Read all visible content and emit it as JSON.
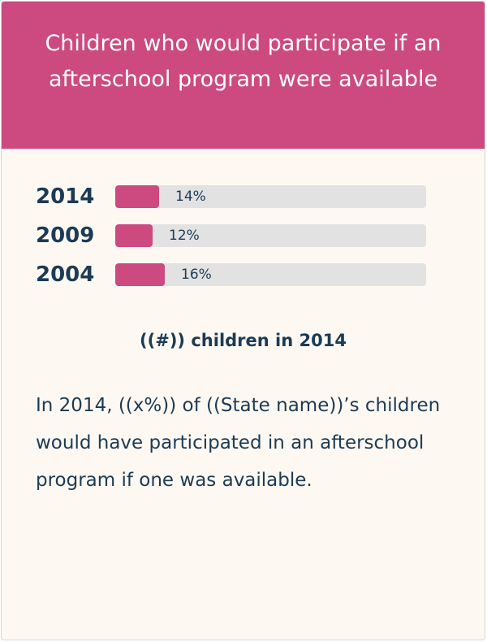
{
  "header": {
    "title": "Children who would participate if an afterschool program were available"
  },
  "summary": {
    "count_text": "((#)) children in 2014",
    "description": "In 2014, ((x%)) of ((State name))’s children would have participated in an afterschool program if one was available."
  },
  "colors": {
    "header_bg": "#cc4a80",
    "bar_fill": "#cc4a80",
    "bar_track": "#e2e2e2",
    "text": "#1c3b55",
    "card_bg": "#fdf9f2"
  },
  "chart_data": {
    "type": "bar",
    "orientation": "horizontal",
    "categories": [
      "2014",
      "2009",
      "2004"
    ],
    "values": [
      14,
      12,
      16
    ],
    "value_labels": [
      "14%",
      "12%",
      "16%"
    ],
    "xlim": [
      0,
      100
    ]
  }
}
